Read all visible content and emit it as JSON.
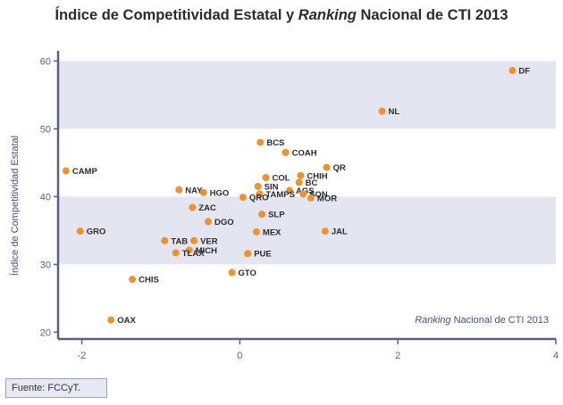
{
  "chart_data": {
    "type": "scatter",
    "title_parts": [
      "Índice de Competitividad Estatal y ",
      "Ranking",
      " Nacional de CTI 2013"
    ],
    "xlabel_parts": [
      "Ranking",
      " Nacional de CTI 2013"
    ],
    "ylabel": "Índice de Competitividad Estatal",
    "xlim": [
      -2.3,
      4.0
    ],
    "ylim": [
      19.0,
      61.5
    ],
    "x_ticks": [
      -2,
      0,
      2,
      4
    ],
    "y_ticks": [
      20,
      30,
      40,
      50,
      60
    ],
    "bands": [
      [
        30,
        40
      ],
      [
        50,
        60
      ]
    ],
    "grid": false,
    "point_color": "#f0922c",
    "band_color": "#e3e5f1",
    "axis_color": "#5a5f86",
    "points": [
      {
        "label": "DF",
        "x": 3.45,
        "y": 58.6
      },
      {
        "label": "NL",
        "x": 1.8,
        "y": 52.6
      },
      {
        "label": "BCS",
        "x": 0.26,
        "y": 48.0
      },
      {
        "label": "COAH",
        "x": 0.58,
        "y": 46.5
      },
      {
        "label": "QR",
        "x": 1.1,
        "y": 44.3
      },
      {
        "label": "CHIH",
        "x": 0.77,
        "y": 43.1
      },
      {
        "label": "COL",
        "x": 0.33,
        "y": 42.8
      },
      {
        "label": "BC",
        "x": 0.75,
        "y": 42.1
      },
      {
        "label": "SIN",
        "x": 0.23,
        "y": 41.5
      },
      {
        "label": "AGS",
        "x": 0.63,
        "y": 40.9
      },
      {
        "label": "SON",
        "x": 0.8,
        "y": 40.4
      },
      {
        "label": "TAMPS",
        "x": 0.25,
        "y": 40.4
      },
      {
        "label": "QRO",
        "x": 0.04,
        "y": 39.9
      },
      {
        "label": "MOR",
        "x": 0.9,
        "y": 39.8
      },
      {
        "label": "CAMP",
        "x": -2.2,
        "y": 43.8
      },
      {
        "label": "NAY",
        "x": -0.77,
        "y": 41.0
      },
      {
        "label": "HGO",
        "x": -0.46,
        "y": 40.6
      },
      {
        "label": "ZAC",
        "x": -0.6,
        "y": 38.4
      },
      {
        "label": "DGO",
        "x": -0.4,
        "y": 36.3
      },
      {
        "label": "SLP",
        "x": 0.28,
        "y": 37.4
      },
      {
        "label": "MEX",
        "x": 0.21,
        "y": 34.8
      },
      {
        "label": "JAL",
        "x": 1.08,
        "y": 34.9
      },
      {
        "label": "GRO",
        "x": -2.02,
        "y": 34.9
      },
      {
        "label": "TAB",
        "x": -0.95,
        "y": 33.5
      },
      {
        "label": "VER",
        "x": -0.58,
        "y": 33.5
      },
      {
        "label": "MICH",
        "x": -0.64,
        "y": 32.1
      },
      {
        "label": "TLAX",
        "x": -0.81,
        "y": 31.7
      },
      {
        "label": "PUE",
        "x": 0.1,
        "y": 31.6
      },
      {
        "label": "GTO",
        "x": -0.1,
        "y": 28.8
      },
      {
        "label": "CHIS",
        "x": -1.36,
        "y": 27.8
      },
      {
        "label": "OAX",
        "x": -1.63,
        "y": 21.8
      }
    ]
  },
  "source": "Fuente: FCCyT."
}
